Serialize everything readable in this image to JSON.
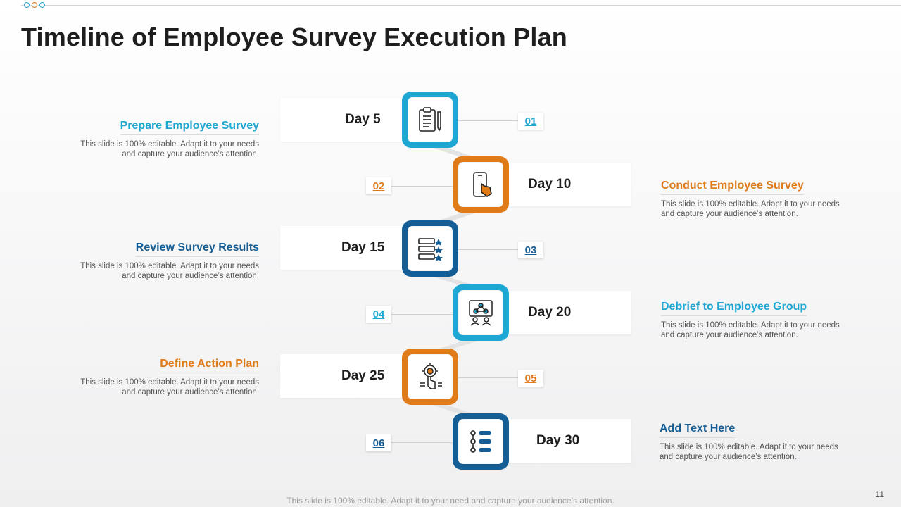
{
  "slide": {
    "title": "Timeline of Employee Survey Execution Plan",
    "footer": "This slide is 100% editable. Adapt it to your need and capture your audience’s attention.",
    "page_number": "11"
  },
  "colors": {
    "blue": "#1ea7d2",
    "orange": "#e07b1a",
    "navy": "#155e95"
  },
  "steps": [
    {
      "number": "01",
      "day": "Day 5",
      "heading": "Prepare Employee Survey",
      "body": "This slide is 100% editable. Adapt it to your needs and capture your audience’s attention.",
      "icon": "clipboard-pencil-icon"
    },
    {
      "number": "02",
      "day": "Day 10",
      "heading": "Conduct Employee Survey",
      "body": "This slide is 100% editable. Adapt it to your needs and capture your audience’s attention.",
      "icon": "phone-tap-icon"
    },
    {
      "number": "03",
      "day": "Day 15",
      "heading": "Review Survey Results",
      "body": "This slide is 100% editable. Adapt it to your needs and capture your audience’s attention.",
      "icon": "rating-list-icon"
    },
    {
      "number": "04",
      "day": "Day 20",
      "heading": "Debrief to Employee Group",
      "body": "This slide is 100% editable. Adapt it to your needs and capture your audience’s attention.",
      "icon": "team-meeting-icon"
    },
    {
      "number": "05",
      "day": "Day 25",
      "heading": "Define Action Plan",
      "body": "This slide is 100% editable. Adapt it to your needs and capture your audience’s attention.",
      "icon": "target-action-icon"
    },
    {
      "number": "06",
      "day": "Day 30",
      "heading": "Add Text Here",
      "body": "This slide is 100% editable. Adapt it to your needs and capture your audience’s attention.",
      "icon": "flow-steps-icon"
    }
  ]
}
